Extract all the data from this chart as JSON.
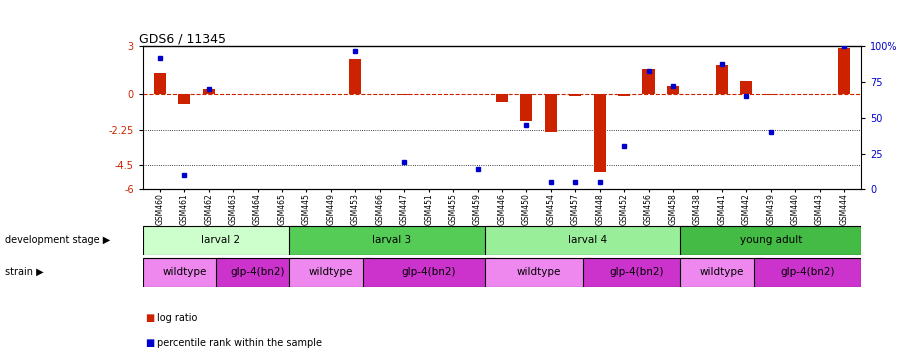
{
  "title": "GDS6 / 11345",
  "samples": [
    "GSM460",
    "GSM461",
    "GSM462",
    "GSM463",
    "GSM464",
    "GSM465",
    "GSM445",
    "GSM449",
    "GSM453",
    "GSM466",
    "GSM447",
    "GSM451",
    "GSM455",
    "GSM459",
    "GSM446",
    "GSM450",
    "GSM454",
    "GSM457",
    "GSM448",
    "GSM452",
    "GSM456",
    "GSM458",
    "GSM438",
    "GSM441",
    "GSM442",
    "GSM439",
    "GSM440",
    "GSM443",
    "GSM444"
  ],
  "log_ratio": [
    1.3,
    -0.6,
    0.3,
    0.0,
    0.0,
    0.0,
    0.0,
    0.0,
    2.2,
    0.0,
    -0.08,
    0.0,
    0.0,
    0.0,
    -0.5,
    -1.7,
    -2.4,
    -0.1,
    -4.9,
    -0.15,
    1.6,
    0.5,
    0.0,
    1.8,
    0.85,
    -0.08,
    0.0,
    0.0,
    2.9
  ],
  "percentile": [
    92,
    10,
    70,
    0,
    0,
    0,
    0,
    0,
    97,
    0,
    19,
    0,
    0,
    14,
    0,
    45,
    5,
    5,
    5,
    30,
    83,
    72,
    0,
    88,
    65,
    40,
    0,
    0,
    100
  ],
  "dev_stage_groups": [
    {
      "label": "larval 2",
      "start": 0,
      "end": 6,
      "color": "#ccffcc"
    },
    {
      "label": "larval 3",
      "start": 6,
      "end": 14,
      "color": "#55cc55"
    },
    {
      "label": "larval 4",
      "start": 14,
      "end": 22,
      "color": "#99ee99"
    },
    {
      "label": "young adult",
      "start": 22,
      "end": 29,
      "color": "#44bb44"
    }
  ],
  "strain_groups": [
    {
      "label": "wildtype",
      "start": 0,
      "end": 3,
      "color": "#ee88ee"
    },
    {
      "label": "glp-4(bn2)",
      "start": 3,
      "end": 6,
      "color": "#cc33cc"
    },
    {
      "label": "wildtype",
      "start": 6,
      "end": 9,
      "color": "#ee88ee"
    },
    {
      "label": "glp-4(bn2)",
      "start": 9,
      "end": 14,
      "color": "#cc33cc"
    },
    {
      "label": "wildtype",
      "start": 14,
      "end": 18,
      "color": "#ee88ee"
    },
    {
      "label": "glp-4(bn2)",
      "start": 18,
      "end": 22,
      "color": "#cc33cc"
    },
    {
      "label": "wildtype",
      "start": 22,
      "end": 25,
      "color": "#ee88ee"
    },
    {
      "label": "glp-4(bn2)",
      "start": 25,
      "end": 29,
      "color": "#cc33cc"
    }
  ],
  "ylim_left": [
    -6,
    3
  ],
  "ylim_right": [
    0,
    100
  ],
  "yticks_left": [
    3,
    0,
    -2.25,
    -4.5,
    -6
  ],
  "yticks_right": [
    100,
    75,
    50,
    25,
    0
  ],
  "bar_color": "#cc2200",
  "dot_color": "#0000cc",
  "zero_line_color": "#cc2200",
  "dev_stage_label": "development stage",
  "strain_label": "strain",
  "legend_log": "log ratio",
  "legend_pct": "percentile rank within the sample"
}
